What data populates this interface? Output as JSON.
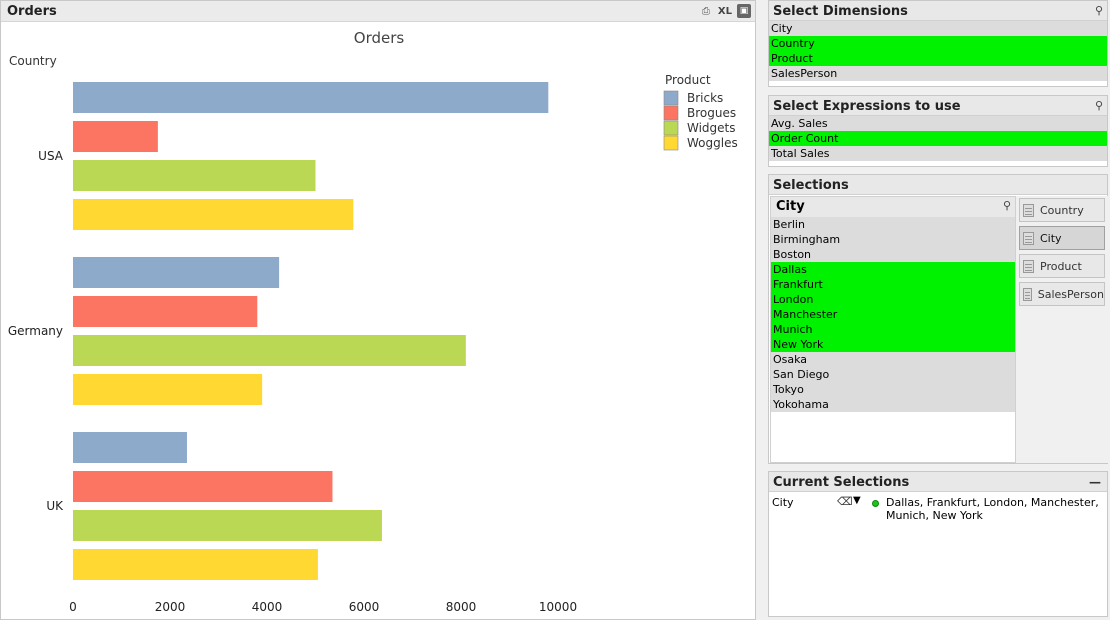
{
  "orders_window": {
    "title": "Orders",
    "icons": [
      "print-icon",
      "xl-export-icon",
      "minimize-icon"
    ],
    "xl_label": "XL"
  },
  "chart_data": {
    "type": "bar",
    "orientation": "horizontal",
    "title": "Orders",
    "ylabel": "Country",
    "legend_title": "Product",
    "legend_position": "top-right",
    "categories": [
      "USA",
      "Germany",
      "UK"
    ],
    "series": [
      {
        "name": "Bricks",
        "color": "#8eaacb",
        "values": [
          9800,
          4250,
          2350
        ]
      },
      {
        "name": "Brogues",
        "color": "#fc7562",
        "values": [
          1750,
          3800,
          5350
        ]
      },
      {
        "name": "Widgets",
        "color": "#bbd854",
        "values": [
          5000,
          8100,
          6370
        ]
      },
      {
        "name": "Woggles",
        "color": "#ffd832",
        "values": [
          5780,
          3900,
          5050
        ]
      }
    ],
    "xlim": [
      0,
      10000
    ],
    "xticks": [
      "0",
      "2000",
      "4000",
      "6000",
      "8000",
      "10000"
    ],
    "grid": false
  },
  "select_dimensions": {
    "title": "Select Dimensions",
    "items": [
      {
        "label": "City",
        "state": "grey"
      },
      {
        "label": "Country",
        "state": "green"
      },
      {
        "label": "Product",
        "state": "green"
      },
      {
        "label": "SalesPerson",
        "state": "grey"
      }
    ]
  },
  "select_expressions": {
    "title": "Select Expressions to use",
    "items": [
      {
        "label": "Avg. Sales",
        "state": "grey"
      },
      {
        "label": "Order Count",
        "state": "green"
      },
      {
        "label": "Total Sales",
        "state": "grey"
      }
    ]
  },
  "selections": {
    "title": "Selections",
    "city_list": {
      "title": "City",
      "items": [
        {
          "label": "Berlin",
          "state": "grey"
        },
        {
          "label": "Birmingham",
          "state": "grey"
        },
        {
          "label": "Boston",
          "state": "grey"
        },
        {
          "label": "Dallas",
          "state": "green"
        },
        {
          "label": "Frankfurt",
          "state": "green"
        },
        {
          "label": "London",
          "state": "green"
        },
        {
          "label": "Manchester",
          "state": "green"
        },
        {
          "label": "Munich",
          "state": "green"
        },
        {
          "label": "New York",
          "state": "green"
        },
        {
          "label": "Osaka",
          "state": "grey"
        },
        {
          "label": "San Diego",
          "state": "grey"
        },
        {
          "label": "Tokyo",
          "state": "grey"
        },
        {
          "label": "Yokohama",
          "state": "grey"
        }
      ]
    },
    "field_buttons": [
      {
        "label": "Country",
        "active": false
      },
      {
        "label": "City",
        "active": true
      },
      {
        "label": "Product",
        "active": false
      },
      {
        "label": "SalesPerson",
        "active": false
      }
    ]
  },
  "current_selections": {
    "title": "Current Selections",
    "field": "City",
    "values": "Dallas, Frankfurt, London, Manchester, Munich, New York"
  },
  "colors": {
    "selected_green": "#00f200",
    "possible_grey": "#dcdcdc"
  }
}
